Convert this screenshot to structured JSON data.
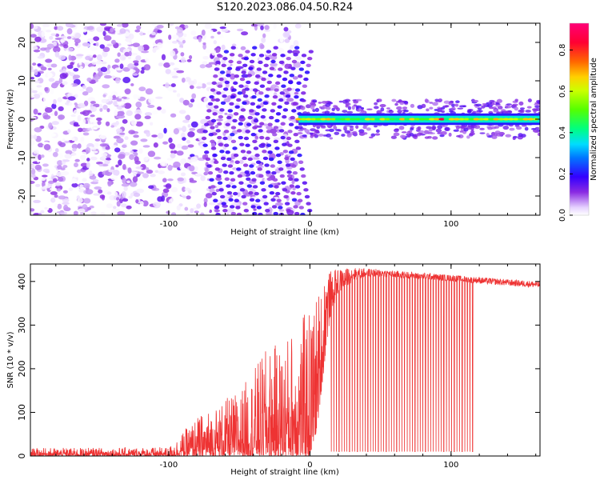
{
  "title": "S120.2023.086.04.50.R24",
  "chart_data": [
    {
      "type": "heatmap",
      "xlabel": "Height of straight line (km)",
      "ylabel": "Frequency (Hz)",
      "xlim": [
        -198,
        163
      ],
      "ylim": [
        -25,
        25
      ],
      "x_ticks": [
        -100,
        0,
        100
      ],
      "x_tick_labels": [
        "-100",
        "0",
        "100"
      ],
      "y_ticks": [
        -20,
        -10,
        0,
        10,
        20
      ],
      "y_tick_labels": [
        "-20",
        "-10",
        "0",
        "10",
        "20"
      ],
      "colorbar": {
        "label": "Normalized spectral amplitude",
        "range": [
          0,
          0.93
        ],
        "ticks": [
          0.0,
          0.2,
          0.4,
          0.6,
          0.8
        ],
        "tick_labels": [
          "0.0",
          "0.2",
          "0.4",
          "0.6",
          "0.8"
        ]
      },
      "description_values": {
        "scatter_region": {
          "x": [
            -198,
            -8
          ],
          "y": [
            -25,
            25
          ],
          "amplitude": [
            0.0,
            0.15
          ]
        },
        "chevrons": [
          {
            "x": [
              -55,
              -35
            ],
            "tip_y": -5
          },
          {
            "x": [
              -35,
              -8
            ],
            "tip_y": -2
          }
        ],
        "band": {
          "x": [
            -8,
            163
          ],
          "center_y": 0,
          "half_width": 1.5,
          "peak_amplitude": 0.93
        }
      },
      "grid": false
    },
    {
      "type": "line",
      "xlabel": "Height of straight line (km)",
      "ylabel": "SNR (10 * v/v)",
      "xlim": [
        -198,
        163
      ],
      "ylim": [
        0,
        440
      ],
      "x_ticks": [
        -100,
        0,
        100
      ],
      "x_tick_labels": [
        "-100",
        "0",
        "100"
      ],
      "y_ticks": [
        0,
        100,
        200,
        300,
        400
      ],
      "y_tick_labels": [
        "0",
        "100",
        "200",
        "300",
        "400"
      ],
      "series": [
        {
          "color": "#ee3333",
          "envelope": {
            "x": [
              -198,
              -100,
              -90,
              -80,
              -70,
              -60,
              -50,
              -40,
              -30,
              -20,
              -10,
              0,
              5,
              10,
              15,
              20,
              30,
              40,
              50,
              60,
              80,
              100,
              120,
              140,
              163
            ],
            "lo": [
              0,
              0,
              0,
              0,
              0,
              0,
              0,
              0,
              0,
              0,
              0,
              0,
              60,
              200,
              330,
              370,
              400,
              410,
              410,
              408,
              405,
              400,
              395,
              390,
              385
            ],
            "hi": [
              18,
              20,
              55,
              90,
              110,
              130,
              150,
              200,
              250,
              260,
              310,
              340,
              380,
              410,
              425,
              428,
              432,
              430,
              428,
              425,
              420,
              415,
              410,
              405,
              400
            ]
          },
          "dropouts": {
            "x": [
              15,
              117
            ],
            "count": 55,
            "value": 10
          }
        }
      ],
      "grid": false
    }
  ]
}
